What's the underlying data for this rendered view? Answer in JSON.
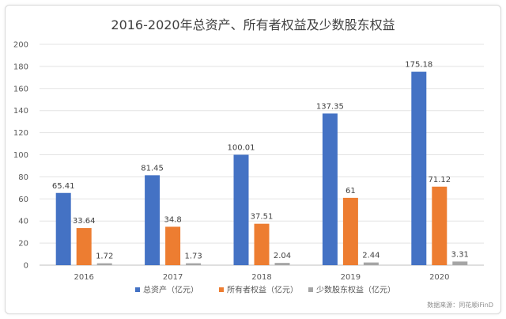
{
  "chart_data": {
    "type": "bar",
    "title": "2016-2020年总资产、所有者权益及少数股东权益",
    "categories": [
      "2016",
      "2017",
      "2018",
      "2019",
      "2020"
    ],
    "series": [
      {
        "name": "总资产（亿元）",
        "color": "#4472c4",
        "values": [
          65.41,
          81.45,
          100.01,
          137.35,
          175.18
        ],
        "labels": [
          "65.41",
          "81.45",
          "100.01",
          "137.35",
          "175.18"
        ]
      },
      {
        "name": "所有者权益（亿元）",
        "color": "#ed7d31",
        "values": [
          33.64,
          34.8,
          37.51,
          61,
          71.12
        ],
        "labels": [
          "33.64",
          "34.8",
          "37.51",
          "61",
          "71.12"
        ]
      },
      {
        "name": "少数股东权益（亿元）",
        "color": "#a5a5a5",
        "values": [
          1.72,
          1.73,
          2.04,
          2.44,
          3.31
        ],
        "labels": [
          "1.72",
          "1.73",
          "2.04",
          "2.44",
          "3.31"
        ]
      }
    ],
    "ylim": [
      0,
      200
    ],
    "yticks": [
      "0",
      "20",
      "40",
      "60",
      "80",
      "100",
      "120",
      "140",
      "160",
      "180",
      "200"
    ],
    "grid": true,
    "legend_position": "bottom"
  },
  "source": "数据来源：同花顺iFinD"
}
